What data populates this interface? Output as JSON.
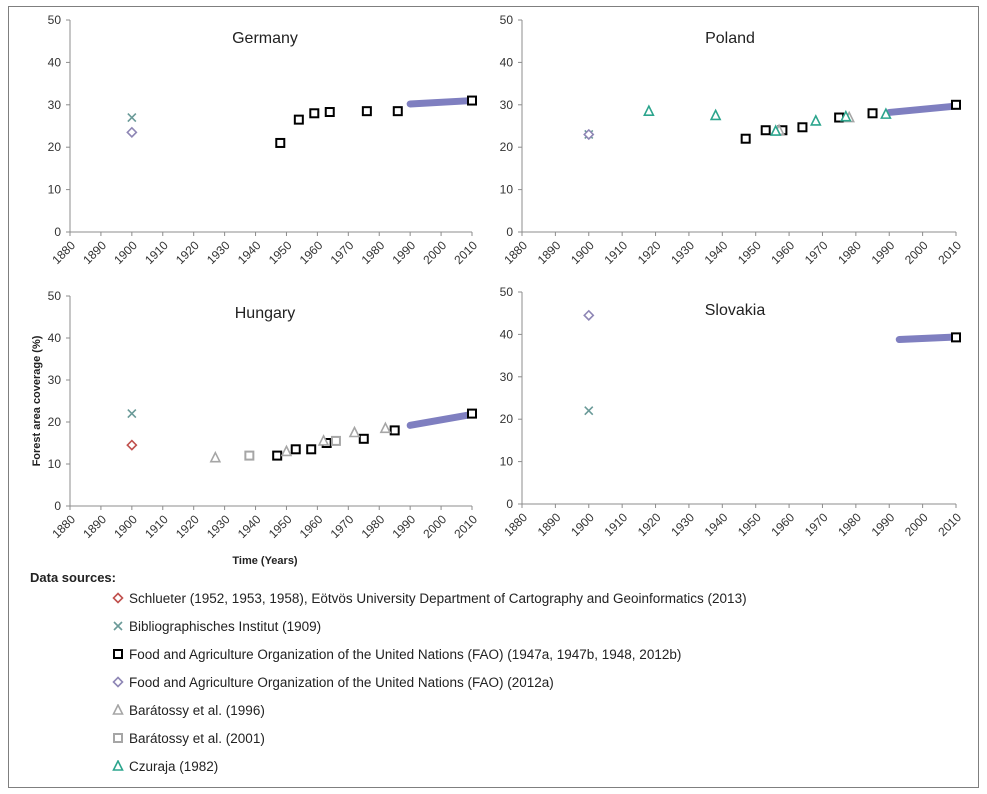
{
  "chart_data": [
    {
      "type": "scatter",
      "title": "Germany",
      "xlabel": "",
      "ylabel": "",
      "xlim": [
        1880,
        2010
      ],
      "ylim": [
        0,
        50
      ],
      "xticks": [
        "1880",
        "1890",
        "1900",
        "1910",
        "1920",
        "1930",
        "1940",
        "1950",
        "1960",
        "1970",
        "1980",
        "1990",
        "2000",
        "2010"
      ],
      "yticks": [
        "0",
        "10",
        "20",
        "30",
        "40",
        "50"
      ],
      "grid": false,
      "series": [
        {
          "name": "Schlueter (1952, 1953, 1958), Eötvös University Department of Cartography and Geoinformatics (2013)",
          "marker": "diamond",
          "color": "#c0504d",
          "points": []
        },
        {
          "name": "Bibliographisches Institut (1909)",
          "marker": "x",
          "color": "#6a9a98",
          "points": [
            [
              1900,
              27
            ]
          ]
        },
        {
          "name": "Food and Agriculture Organization of the United Nations (FAO) (1947a, 1947b, 1948, 2012b)",
          "marker": "square",
          "color": "#000000",
          "points": [
            [
              1948,
              21
            ],
            [
              1954,
              26.5
            ],
            [
              1959,
              28
            ],
            [
              1964,
              28.3
            ],
            [
              1976,
              28.5
            ],
            [
              1986,
              28.5
            ],
            [
              2010,
              31
            ]
          ]
        },
        {
          "name": "Food and Agriculture Organization of the United Nations (FAO) (2012a)",
          "marker": "diamond",
          "color": "#8e86b5",
          "points": [
            [
              1900,
              23.5
            ]
          ]
        },
        {
          "name": "Barátossy et al. (1996)",
          "marker": "triangle",
          "color": "#a6a6a6",
          "points": []
        },
        {
          "name": "Barátossy et al. (2001)",
          "marker": "square",
          "color": "#a6a6a6",
          "points": []
        },
        {
          "name": "Czuraja (1982)",
          "marker": "triangle",
          "color": "#2ca58d",
          "points": []
        }
      ],
      "trend": {
        "color": "#7f7fc0",
        "from": [
          1990,
          30.2
        ],
        "to": [
          2010,
          31
        ]
      }
    },
    {
      "type": "scatter",
      "title": "Poland",
      "xlabel": "",
      "ylabel": "",
      "xlim": [
        1880,
        2010
      ],
      "ylim": [
        0,
        50
      ],
      "xticks": [
        "1880",
        "1890",
        "1900",
        "1910",
        "1920",
        "1930",
        "1940",
        "1950",
        "1960",
        "1970",
        "1980",
        "1990",
        "2000",
        "2010"
      ],
      "yticks": [
        "0",
        "10",
        "20",
        "30",
        "40",
        "50"
      ],
      "grid": false,
      "series": [
        {
          "name": "Schlueter (1952, 1953, 1958), Eötvös University Department of Cartography and Geoinformatics (2013)",
          "marker": "diamond",
          "color": "#c0504d",
          "points": []
        },
        {
          "name": "Bibliographisches Institut (1909)",
          "marker": "x",
          "color": "#6a9a98",
          "points": [
            [
              1900,
              23
            ]
          ]
        },
        {
          "name": "Food and Agriculture Organization of the United Nations (FAO) (1947a, 1947b, 1948, 2012b)",
          "marker": "square",
          "color": "#000000",
          "points": [
            [
              1947,
              22
            ],
            [
              1953,
              24
            ],
            [
              1958,
              24
            ],
            [
              1964,
              24.7
            ],
            [
              1975,
              27
            ],
            [
              1985,
              28
            ],
            [
              2010,
              30
            ]
          ]
        },
        {
          "name": "Food and Agriculture Organization of the United Nations (FAO) (2012a)",
          "marker": "diamond",
          "color": "#8e86b5",
          "points": [
            [
              1900,
              23
            ]
          ]
        },
        {
          "name": "Barátossy et al. (1996)",
          "marker": "triangle",
          "color": "#a6a6a6",
          "points": [
            [
              1957,
              24
            ],
            [
              1978,
              27
            ]
          ]
        },
        {
          "name": "Barátossy et al. (2001)",
          "marker": "square",
          "color": "#a6a6a6",
          "points": []
        },
        {
          "name": "Czuraja (1982)",
          "marker": "triangle",
          "color": "#2ca58d",
          "points": [
            [
              1918,
              28.5
            ],
            [
              1938,
              27.5
            ],
            [
              1956,
              23.8
            ],
            [
              1968,
              26.2
            ],
            [
              1977,
              27.2
            ],
            [
              1989,
              27.8
            ]
          ]
        }
      ],
      "trend": {
        "color": "#7f7fc0",
        "from": [
          1990,
          28.2
        ],
        "to": [
          2010,
          29.7
        ]
      }
    },
    {
      "type": "scatter",
      "title": "Hungary",
      "xlabel": "Time (Years)",
      "ylabel": "Forest area coverage (%)",
      "xlim": [
        1880,
        2010
      ],
      "ylim": [
        0,
        50
      ],
      "xticks": [
        "1880",
        "1890",
        "1900",
        "1910",
        "1920",
        "1930",
        "1940",
        "1950",
        "1960",
        "1970",
        "1980",
        "1990",
        "2000",
        "2010"
      ],
      "yticks": [
        "0",
        "10",
        "20",
        "30",
        "40",
        "50"
      ],
      "grid": false,
      "series": [
        {
          "name": "Schlueter (1952, 1953, 1958), Eötvös University Department of Cartography and Geoinformatics (2013)",
          "marker": "diamond",
          "color": "#c0504d",
          "points": [
            [
              1900,
              14.5
            ]
          ]
        },
        {
          "name": "Bibliographisches Institut (1909)",
          "marker": "x",
          "color": "#6a9a98",
          "points": [
            [
              1900,
              22
            ]
          ]
        },
        {
          "name": "Food and Agriculture Organization of the United Nations (FAO) (1947a, 1947b, 1948, 2012b)",
          "marker": "square",
          "color": "#000000",
          "points": [
            [
              1947,
              12
            ],
            [
              1953,
              13.5
            ],
            [
              1958,
              13.5
            ],
            [
              1963,
              15
            ],
            [
              1975,
              16
            ],
            [
              1985,
              18
            ],
            [
              2010,
              22
            ]
          ]
        },
        {
          "name": "Food and Agriculture Organization of the United Nations (FAO) (2012a)",
          "marker": "diamond",
          "color": "#8e86b5",
          "points": []
        },
        {
          "name": "Barátossy et al. (1996)",
          "marker": "triangle",
          "color": "#a6a6a6",
          "points": [
            [
              1927,
              11.5
            ],
            [
              1950,
              13
            ],
            [
              1962,
              15.5
            ],
            [
              1972,
              17.5
            ],
            [
              1982,
              18.5
            ]
          ]
        },
        {
          "name": "Barátossy et al. (2001)",
          "marker": "square",
          "color": "#a6a6a6",
          "points": [
            [
              1938,
              12
            ],
            [
              1966,
              15.5
            ]
          ]
        },
        {
          "name": "Czuraja (1982)",
          "marker": "triangle",
          "color": "#2ca58d",
          "points": []
        }
      ],
      "trend": {
        "color": "#7f7fc0",
        "from": [
          1990,
          19.2
        ],
        "to": [
          2010,
          21.8
        ]
      }
    },
    {
      "type": "scatter",
      "title": "Slovakia",
      "xlabel": "",
      "ylabel": "",
      "xlim": [
        1880,
        2010
      ],
      "ylim": [
        0,
        50
      ],
      "xticks": [
        "1880",
        "1890",
        "1900",
        "1910",
        "1920",
        "1930",
        "1940",
        "1950",
        "1960",
        "1970",
        "1980",
        "1990",
        "2000",
        "2010"
      ],
      "yticks": [
        "0",
        "10",
        "20",
        "30",
        "40",
        "50"
      ],
      "grid": false,
      "series": [
        {
          "name": "Schlueter (1952, 1953, 1958), Eötvös University Department of Cartography and Geoinformatics (2013)",
          "marker": "diamond",
          "color": "#c0504d",
          "points": []
        },
        {
          "name": "Bibliographisches Institut (1909)",
          "marker": "x",
          "color": "#6a9a98",
          "points": [
            [
              1900,
              22
            ]
          ]
        },
        {
          "name": "Food and Agriculture Organization of the United Nations (FAO) (1947a, 1947b, 1948, 2012b)",
          "marker": "square",
          "color": "#000000",
          "points": [
            [
              2010,
              39.3
            ]
          ]
        },
        {
          "name": "Food and Agriculture Organization of the United Nations (FAO) (2012a)",
          "marker": "diamond",
          "color": "#8e86b5",
          "points": [
            [
              1900,
              44.5
            ]
          ]
        },
        {
          "name": "Barátossy et al. (1996)",
          "marker": "triangle",
          "color": "#a6a6a6",
          "points": []
        },
        {
          "name": "Barátossy et al. (2001)",
          "marker": "square",
          "color": "#a6a6a6",
          "points": []
        },
        {
          "name": "Czuraja (1982)",
          "marker": "triangle",
          "color": "#2ca58d",
          "points": []
        }
      ],
      "trend": {
        "color": "#7f7fc0",
        "from": [
          1993,
          38.8
        ],
        "to": [
          2010,
          39.4
        ]
      }
    }
  ],
  "legend": {
    "title": "Data sources:",
    "items": [
      {
        "label": "Schlueter (1952, 1953, 1958), Eötvös University Department of Cartography and Geoinformatics (2013)",
        "marker": "diamond",
        "color": "#c0504d"
      },
      {
        "label": "Bibliographisches Institut (1909)",
        "marker": "x",
        "color": "#6a9a98"
      },
      {
        "label": "Food and Agriculture Organization of the United Nations (FAO) (1947a, 1947b, 1948, 2012b)",
        "marker": "square",
        "color": "#000000"
      },
      {
        "label": "Food and Agriculture Organization of the United Nations (FAO) (2012a)",
        "marker": "diamond",
        "color": "#8e86b5"
      },
      {
        "label": "Barátossy et al. (1996)",
        "marker": "triangle",
        "color": "#a6a6a6"
      },
      {
        "label": "Barátossy et al. (2001)",
        "marker": "square",
        "color": "#a6a6a6"
      },
      {
        "label": "Czuraja (1982)",
        "marker": "triangle",
        "color": "#2ca58d"
      }
    ]
  }
}
